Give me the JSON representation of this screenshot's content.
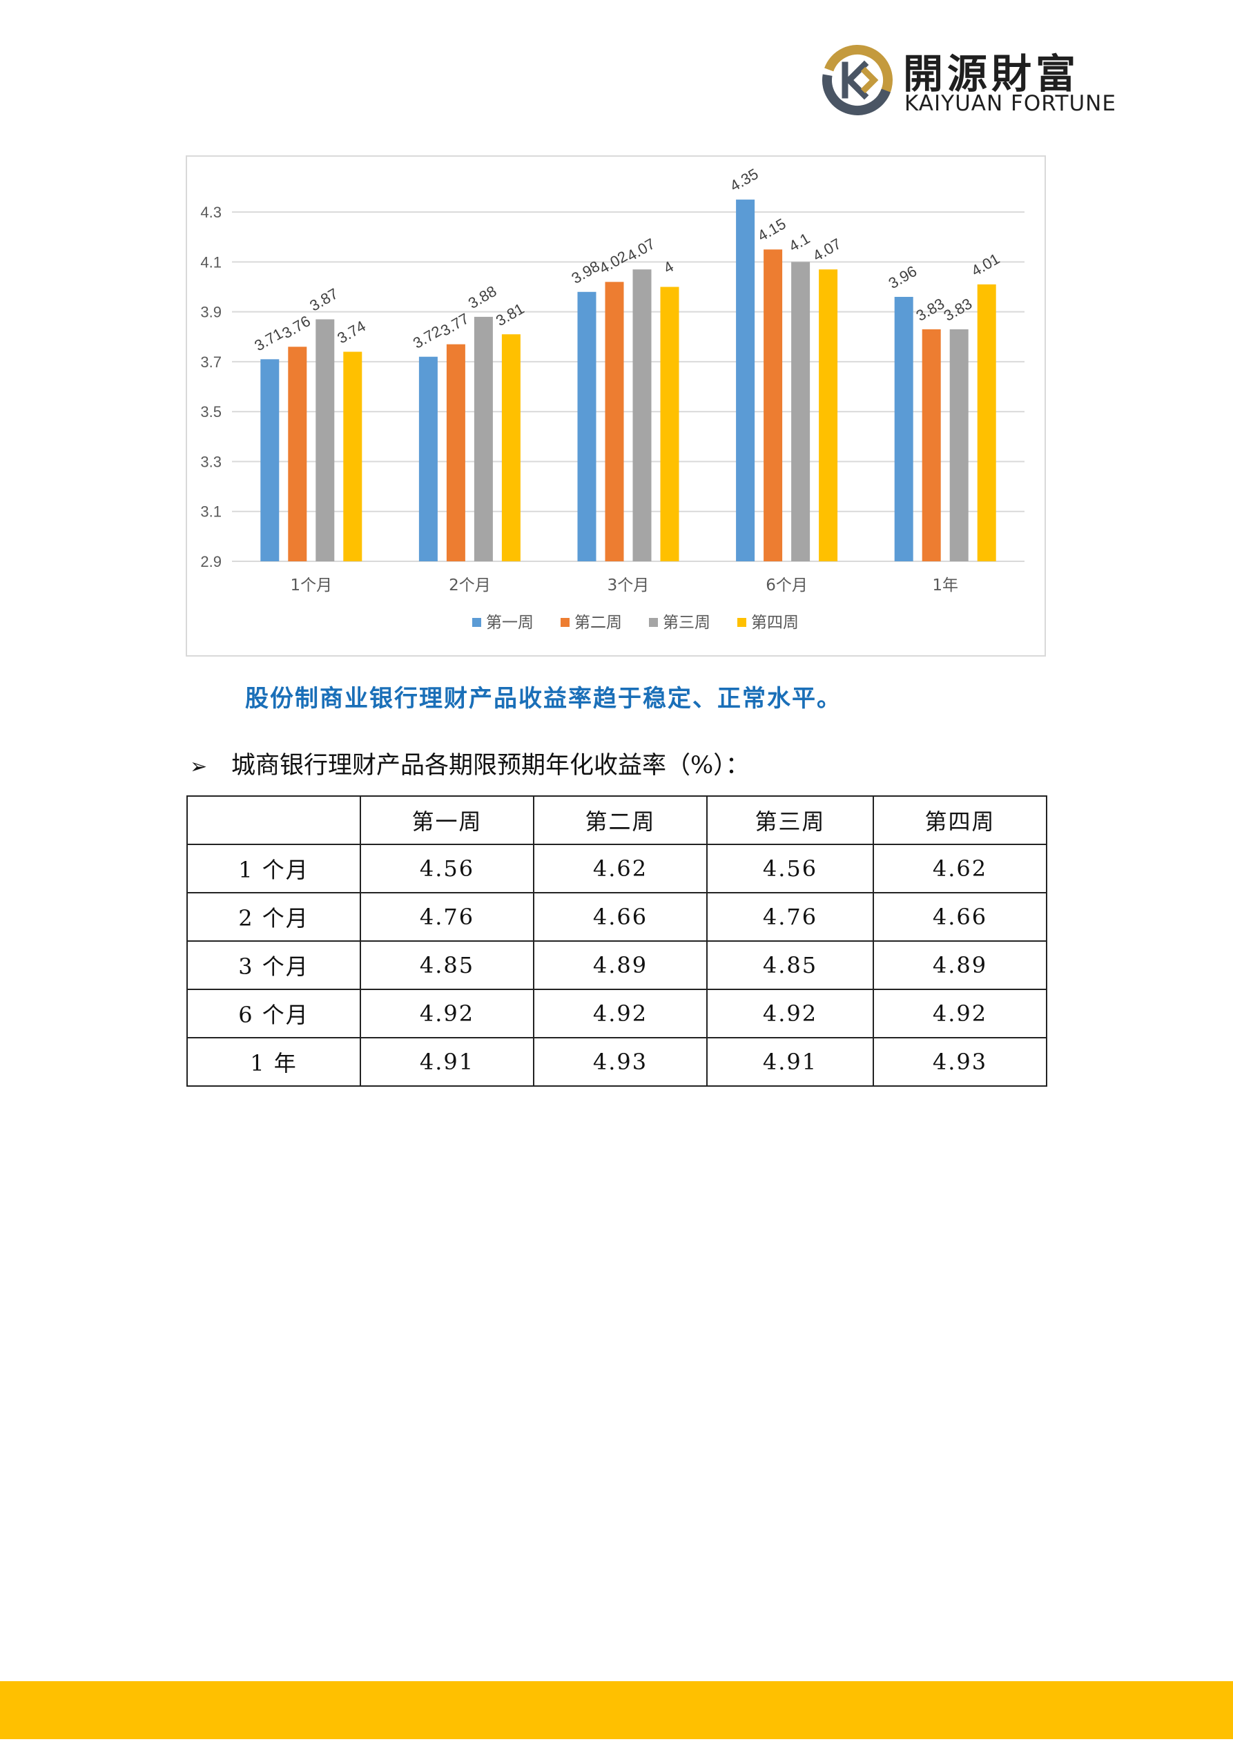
{
  "logo": {
    "cn": "開源財富",
    "en": "KAIYUAN FORTUNE",
    "colors": {
      "gold": "#c49a3d",
      "gray": "#4a5564"
    }
  },
  "chart_data": {
    "type": "bar",
    "categories": [
      "1个月",
      "2个月",
      "3个月",
      "6个月",
      "1年"
    ],
    "series": [
      {
        "name": "第一周",
        "color": "#5b9bd5",
        "values": [
          3.71,
          3.72,
          3.98,
          4.35,
          3.96
        ]
      },
      {
        "name": "第二周",
        "color": "#ed7d31",
        "values": [
          3.76,
          3.77,
          4.02,
          4.15,
          3.83
        ]
      },
      {
        "name": "第三周",
        "color": "#a5a5a5",
        "values": [
          3.87,
          3.88,
          4.07,
          4.1,
          3.83
        ]
      },
      {
        "name": "第四周",
        "color": "#ffc000",
        "values": [
          3.74,
          3.81,
          4,
          4.07,
          4.01
        ]
      }
    ],
    "yticks": [
      "2.9",
      "3.1",
      "3.3",
      "3.5",
      "3.7",
      "3.9",
      "4.1",
      "4.3"
    ],
    "ylim": [
      2.9,
      4.4
    ],
    "grid": true,
    "legend_position": "bottom",
    "data_labels": true
  },
  "highlight": "股份制商业银行理财产品收益率趋于稳定、正常水平。",
  "section_title": "城商银行理财产品各期限预期年化收益率（%）：",
  "table": {
    "headers": [
      "",
      "第一周",
      "第二周",
      "第三周",
      "第四周"
    ],
    "rows": [
      [
        "1 个月",
        "4.56",
        "4.62",
        "4.56",
        "4.62"
      ],
      [
        "2 个月",
        "4.76",
        "4.66",
        "4.76",
        "4.66"
      ],
      [
        "3 个月",
        "4.85",
        "4.89",
        "4.85",
        "4.89"
      ],
      [
        "6 个月",
        "4.92",
        "4.92",
        "4.92",
        "4.92"
      ],
      [
        "1 年",
        "4.91",
        "4.93",
        "4.91",
        "4.93"
      ]
    ]
  },
  "footer_color": "#ffc000"
}
